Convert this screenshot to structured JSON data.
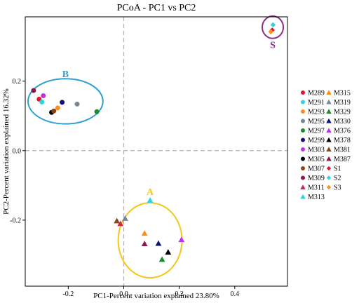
{
  "chart_data": {
    "type": "scatter",
    "title": "PCoA - PC1 vs PC2",
    "xlabel": "PC1-Percent variation explained 23.80%",
    "ylabel": "PC2-Percent variation explained 16.32%",
    "xlim": [
      -0.355,
      0.59
    ],
    "ylim": [
      -0.39,
      0.385
    ],
    "xticks": [
      -0.2,
      0.0,
      0.2,
      0.4
    ],
    "xtick_labels": [
      "-0.2",
      "0.0",
      "0.2",
      "0.4"
    ],
    "yticks": [
      -0.2,
      0.0,
      0.2
    ],
    "ytick_labels": [
      "-0.2",
      "0.0",
      "0.2"
    ],
    "zero_lines": true,
    "legend_position": "right",
    "series": [
      {
        "name": "M289",
        "marker": "circle",
        "color": "#e8112d",
        "points": [
          [
            -0.305,
            0.148
          ]
        ]
      },
      {
        "name": "M291",
        "marker": "circle",
        "color": "#2ad4e0",
        "points": [
          [
            -0.295,
            0.14
          ]
        ]
      },
      {
        "name": "M293",
        "marker": "circle",
        "color": "#ff8c1a",
        "points": [
          [
            -0.238,
            0.123
          ]
        ]
      },
      {
        "name": "M295",
        "marker": "circle",
        "color": "#778899",
        "points": [
          [
            -0.168,
            0.134
          ]
        ]
      },
      {
        "name": "M297",
        "marker": "circle",
        "color": "#1a8c2a",
        "points": [
          [
            -0.097,
            0.112
          ]
        ]
      },
      {
        "name": "M299",
        "marker": "circle",
        "color": "#10107a",
        "points": [
          [
            -0.222,
            0.139
          ]
        ]
      },
      {
        "name": "M303",
        "marker": "circle",
        "color": "#c032e8",
        "points": [
          [
            -0.29,
            0.158
          ]
        ]
      },
      {
        "name": "M305",
        "marker": "circle",
        "color": "#000000",
        "points": [
          [
            -0.26,
            0.11
          ]
        ]
      },
      {
        "name": "M307",
        "marker": "circle",
        "color": "#8b4513",
        "points": [
          [
            -0.252,
            0.114
          ]
        ]
      },
      {
        "name": "M309",
        "marker": "circle",
        "color": "#8b1a4a",
        "points": [
          [
            -0.325,
            0.173
          ]
        ]
      },
      {
        "name": "M311",
        "marker": "triangle",
        "color": "#e0204a",
        "points": [
          [
            -0.012,
            -0.21
          ]
        ]
      },
      {
        "name": "M313",
        "marker": "triangle",
        "color": "#2ad4e0",
        "points": [
          [
            0.095,
            -0.143
          ]
        ]
      },
      {
        "name": "M315",
        "marker": "triangle",
        "color": "#ff8c1a",
        "points": [
          [
            0.075,
            -0.238
          ]
        ]
      },
      {
        "name": "M319",
        "marker": "triangle",
        "color": "#778899",
        "points": [
          [
            0.005,
            -0.195
          ]
        ]
      },
      {
        "name": "M329",
        "marker": "triangle",
        "color": "#1a8c2a",
        "points": [
          [
            0.138,
            -0.313
          ]
        ]
      },
      {
        "name": "M330",
        "marker": "triangle",
        "color": "#10107a",
        "points": [
          [
            0.125,
            -0.267
          ]
        ]
      },
      {
        "name": "M376",
        "marker": "triangle",
        "color": "#c032e8",
        "points": [
          [
            0.208,
            -0.256
          ]
        ]
      },
      {
        "name": "M378",
        "marker": "triangle",
        "color": "#000000",
        "points": [
          [
            0.16,
            -0.292
          ]
        ]
      },
      {
        "name": "M381",
        "marker": "triangle",
        "color": "#8b4513",
        "points": [
          [
            -0.025,
            -0.202
          ]
        ]
      },
      {
        "name": "M387",
        "marker": "triangle",
        "color": "#8b1a4a",
        "points": [
          [
            0.075,
            -0.268
          ]
        ]
      },
      {
        "name": "S1",
        "marker": "diamond",
        "color": "#e8112d",
        "points": [
          [
            0.535,
            0.347
          ]
        ]
      },
      {
        "name": "S2",
        "marker": "diamond",
        "color": "#2ad4e0",
        "points": [
          [
            0.538,
            0.362
          ]
        ]
      },
      {
        "name": "S3",
        "marker": "diamond",
        "color": "#ff8c1a",
        "points": [
          [
            0.53,
            0.342
          ]
        ]
      }
    ],
    "groups": [
      {
        "label": "A",
        "color": "#f5c518",
        "center": [
          0.095,
          -0.258
        ],
        "rx": 0.115,
        "ry": 0.108,
        "label_at": [
          0.095,
          -0.118
        ]
      },
      {
        "label": "B",
        "color": "#2e9fd0",
        "center": [
          -0.21,
          0.142
        ],
        "rx": 0.135,
        "ry": 0.065,
        "label_at": [
          -0.21,
          0.222
        ]
      },
      {
        "label": "S",
        "color": "#8b2d8b",
        "center": [
          0.537,
          0.355
        ],
        "rx": 0.038,
        "ry": 0.032,
        "label_at": [
          0.537,
          0.305
        ]
      }
    ]
  }
}
